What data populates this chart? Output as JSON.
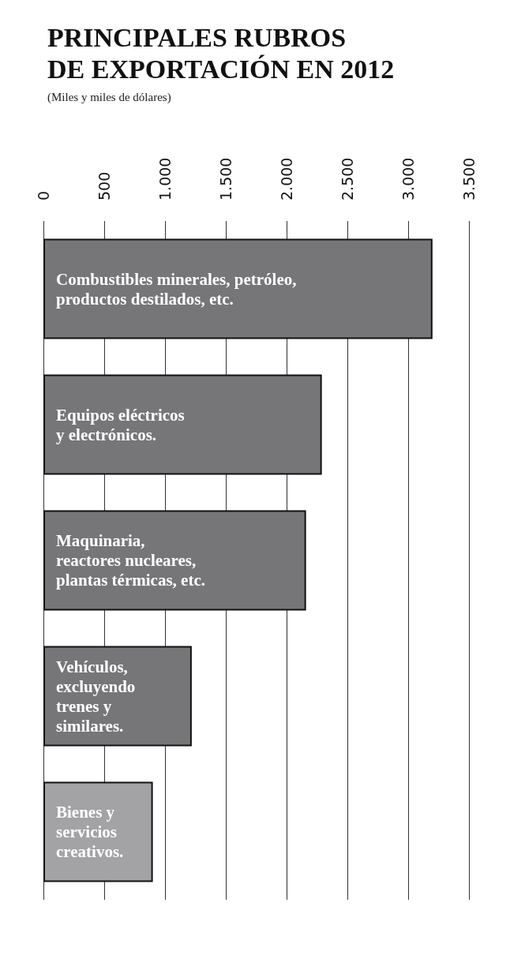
{
  "chart_data": {
    "type": "bar",
    "orientation": "horizontal",
    "title": "PRINCIPALES RUBROS\nDE EXPORTACIÓN EN 2012",
    "subtitle": "(Miles y miles de dólares)",
    "categories": [
      "Combustibles minerales, petróleo,\nproductos destilados, etc.",
      "Equipos eléctricos\ny electrónicos.",
      "Maquinaria,\nreactores nucleares,\nplantas térmicas, etc.",
      "Vehículos,\nexcluyendo\ntrenes y\nsimilares.",
      "Bienes y\nservicios\ncreativos."
    ],
    "values": [
      3200,
      2290,
      2160,
      1220,
      900
    ],
    "colors": [
      "#767679",
      "#767679",
      "#767679",
      "#767679",
      "#a3a3a6"
    ],
    "xlim": [
      0,
      3500
    ],
    "xticks": [
      0,
      500,
      {
        "value": 1000,
        "label": "1.000"
      },
      {
        "value": 1500,
        "label": "1.500"
      },
      {
        "value": 2000,
        "label": "2.000"
      },
      {
        "value": 2500,
        "label": "2.500"
      },
      {
        "value": 3000,
        "label": "3.000"
      },
      {
        "value": 3500,
        "label": "3.500"
      }
    ],
    "grid": "x"
  }
}
